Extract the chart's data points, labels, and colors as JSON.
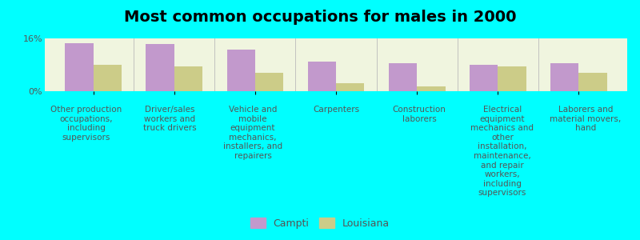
{
  "title": "Most common occupations for males in 2000",
  "background_color": "#00FFFF",
  "plot_bg_color": "#F0F5DF",
  "categories": [
    "Other production\noccupations,\nincluding\nsupervisors",
    "Driver/sales\nworkers and\ntruck drivers",
    "Vehicle and\nmobile\nequipment\nmechanics,\ninstallers, and\nrepairers",
    "Carpenters",
    "Construction\nlaborers",
    "Electrical\nequipment\nmechanics and\nother\ninstallation,\nmaintenance,\nand repair\nworkers,\nincluding\nsupervisors",
    "Laborers and\nmaterial movers,\nhand"
  ],
  "campti_values": [
    14.5,
    14.2,
    12.5,
    9.0,
    8.5,
    8.0,
    8.5
  ],
  "louisiana_values": [
    8.0,
    7.5,
    5.5,
    2.5,
    1.5,
    7.5,
    5.5
  ],
  "campti_color": "#C299CC",
  "louisiana_color": "#CCCC88",
  "ylim": [
    0,
    16
  ],
  "ytick_labels": [
    "0%",
    "16%"
  ],
  "legend_labels": [
    "Campti",
    "Louisiana"
  ],
  "bar_width": 0.35,
  "title_fontsize": 14,
  "label_fontsize": 7.5,
  "tick_fontsize": 8
}
